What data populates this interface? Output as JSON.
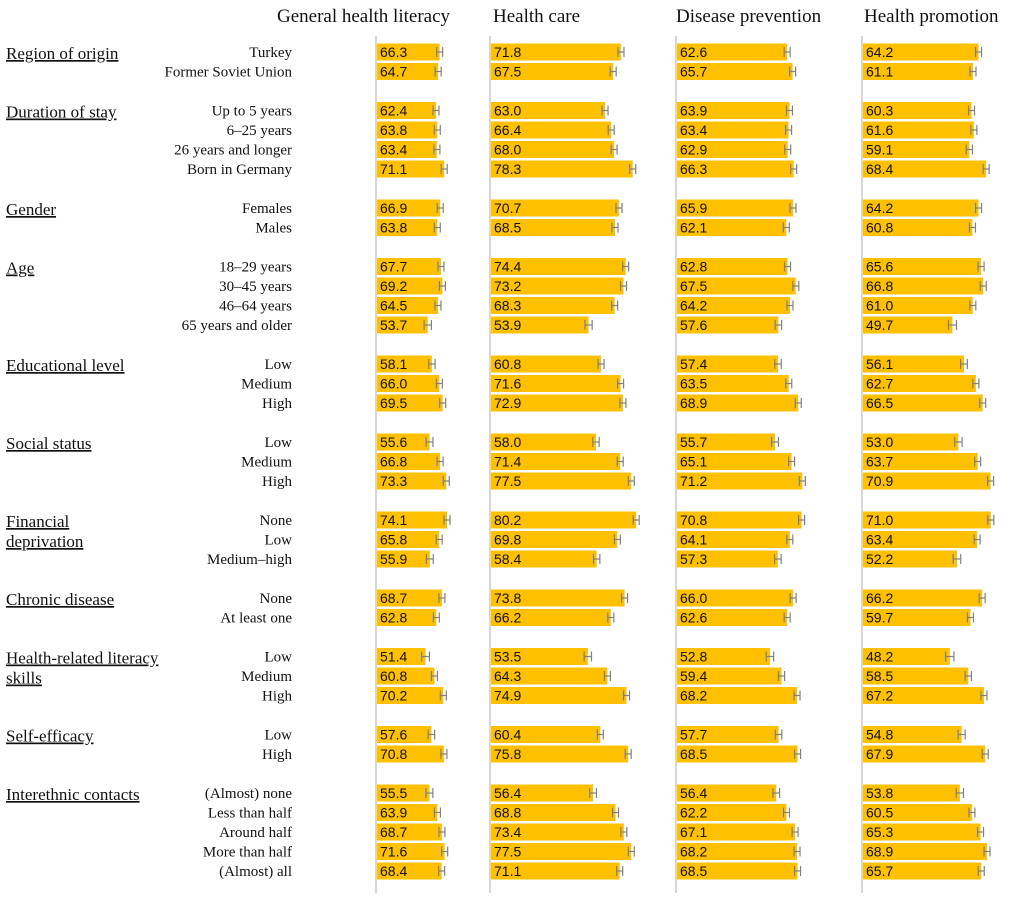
{
  "chart_data": {
    "type": "bar",
    "orientation": "horizontal",
    "colors": {
      "bar": "#FFC000",
      "error_bar": "#808080",
      "panel_axis": "#C8C8C8"
    },
    "panels": [
      {
        "id": "general",
        "title": "General health literacy"
      },
      {
        "id": "care",
        "title": "Health care"
      },
      {
        "id": "prevention",
        "title": "Disease prevention"
      },
      {
        "id": "promotion",
        "title": "Health promotion"
      }
    ],
    "groups": [
      {
        "title": [
          "Region of origin"
        ],
        "rows": [
          {
            "label": "Turkey",
            "values": [
              "66.3",
              "71.8",
              "62.6",
              "64.2"
            ]
          },
          {
            "label": "Former Soviet Union",
            "values": [
              "64.7",
              "67.5",
              "65.7",
              "61.1"
            ]
          }
        ]
      },
      {
        "title": [
          "Duration of stay"
        ],
        "rows": [
          {
            "label": "Up to 5 years",
            "values": [
              "62.4",
              "63.0",
              "63.9",
              "60.3"
            ]
          },
          {
            "label": "6–25 years",
            "values": [
              "63.8",
              "66.4",
              "63.4",
              "61.6"
            ]
          },
          {
            "label": "26 years and longer",
            "values": [
              "63.4",
              "68.0",
              "62.9",
              "59.1"
            ]
          },
          {
            "label": "Born in Germany",
            "values": [
              "71.1",
              "78.3",
              "66.3",
              "68.4"
            ]
          }
        ]
      },
      {
        "title": [
          "Gender"
        ],
        "rows": [
          {
            "label": "Females",
            "values": [
              "66.9",
              "70.7",
              "65.9",
              "64.2"
            ]
          },
          {
            "label": "Males",
            "values": [
              "63.8",
              "68.5",
              "62.1",
              "60.8"
            ]
          }
        ]
      },
      {
        "title": [
          "Age"
        ],
        "rows": [
          {
            "label": "18–29 years",
            "values": [
              "67.7",
              "74.4",
              "62.8",
              "65.6"
            ]
          },
          {
            "label": "30–45 years",
            "values": [
              "69.2",
              "73.2",
              "67.5",
              "66.8"
            ]
          },
          {
            "label": "46–64 years",
            "values": [
              "64.5",
              "68.3",
              "64.2",
              "61.0"
            ]
          },
          {
            "label": "65 years and older",
            "values": [
              "53.7",
              "53.9",
              "57.6",
              "49.7"
            ]
          }
        ]
      },
      {
        "title": [
          "Educational level"
        ],
        "rows": [
          {
            "label": "Low",
            "values": [
              "58.1",
              "60.8",
              "57.4",
              "56.1"
            ]
          },
          {
            "label": "Medium",
            "values": [
              "66.0",
              "71.6",
              "63.5",
              "62.7"
            ]
          },
          {
            "label": "High",
            "values": [
              "69.5",
              "72.9",
              "68.9",
              "66.5"
            ]
          }
        ]
      },
      {
        "title": [
          "Social status"
        ],
        "rows": [
          {
            "label": "Low",
            "values": [
              "55.6",
              "58.0",
              "55.7",
              "53.0"
            ]
          },
          {
            "label": "Medium",
            "values": [
              "66.8",
              "71.4",
              "65.1",
              "63.7"
            ]
          },
          {
            "label": "High",
            "values": [
              "73.3",
              "77.5",
              "71.2",
              "70.9"
            ]
          }
        ]
      },
      {
        "title": [
          "Financial",
          "deprivation"
        ],
        "rows": [
          {
            "label": "None",
            "values": [
              "74.1",
              "80.2",
              "70.8",
              "71.0"
            ]
          },
          {
            "label": "Low",
            "values": [
              "65.8",
              "69.8",
              "64.1",
              "63.4"
            ]
          },
          {
            "label": "Medium–high",
            "values": [
              "55.9",
              "58.4",
              "57.3",
              "52.2"
            ]
          }
        ]
      },
      {
        "title": [
          "Chronic disease"
        ],
        "rows": [
          {
            "label": "None",
            "values": [
              "68.7",
              "73.8",
              "66.0",
              "66.2"
            ]
          },
          {
            "label": "At least one",
            "values": [
              "62.8",
              "66.2",
              "62.6",
              "59.7"
            ]
          }
        ]
      },
      {
        "title": [
          "Health-related literacy",
          "skills"
        ],
        "rows": [
          {
            "label": "Low",
            "values": [
              "51.4",
              "53.5",
              "52.8",
              "48.2"
            ]
          },
          {
            "label": "Medium",
            "values": [
              "60.8",
              "64.3",
              "59.4",
              "58.5"
            ]
          },
          {
            "label": "High",
            "values": [
              "70.2",
              "74.9",
              "68.2",
              "67.2"
            ]
          }
        ]
      },
      {
        "title": [
          "Self-efficacy"
        ],
        "rows": [
          {
            "label": "Low",
            "values": [
              "57.6",
              "60.4",
              "57.7",
              "54.8"
            ]
          },
          {
            "label": "High",
            "values": [
              "70.8",
              "75.8",
              "68.5",
              "67.9"
            ]
          }
        ]
      },
      {
        "title": [
          "Interethnic contacts"
        ],
        "rows": [
          {
            "label": "(Almost) none",
            "values": [
              "55.5",
              "56.4",
              "56.4",
              "53.8"
            ]
          },
          {
            "label": "Less than half",
            "values": [
              "63.9",
              "68.8",
              "62.2",
              "60.5"
            ]
          },
          {
            "label": "Around half",
            "values": [
              "68.7",
              "73.4",
              "67.1",
              "65.3"
            ]
          },
          {
            "label": "More than half",
            "values": [
              "71.6",
              "77.5",
              "68.2",
              "68.9"
            ]
          },
          {
            "label": "(Almost) all",
            "values": [
              "68.4",
              "71.1",
              "68.5",
              "65.7"
            ]
          }
        ]
      }
    ]
  }
}
